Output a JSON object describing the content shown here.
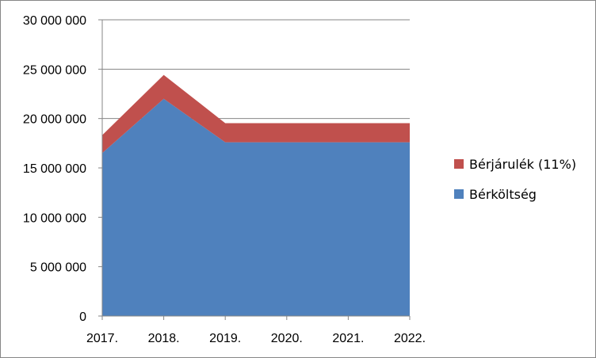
{
  "chart_data": {
    "type": "area",
    "stacked": true,
    "categories": [
      "2017.",
      "2018.",
      "2019.",
      "2020.",
      "2021.",
      "2022."
    ],
    "series": [
      {
        "name": "Bérköltség",
        "color": "#4f81bd",
        "values": [
          16500000,
          22000000,
          17600000,
          17600000,
          17600000,
          17600000
        ]
      },
      {
        "name": "Bérjárulék (11%)",
        "color": "#c0504d",
        "values": [
          1815000,
          2420000,
          1936000,
          1936000,
          1936000,
          1936000
        ]
      }
    ],
    "ylim": [
      0,
      30000000
    ],
    "yticks": [
      {
        "value": 0,
        "label": "0"
      },
      {
        "value": 5000000,
        "label": "5 000 000"
      },
      {
        "value": 10000000,
        "label": "10 000 000"
      },
      {
        "value": 15000000,
        "label": "15 000 000"
      },
      {
        "value": 20000000,
        "label": "20 000 000"
      },
      {
        "value": 25000000,
        "label": "25 000 000"
      },
      {
        "value": 30000000,
        "label": "30 000 000"
      }
    ],
    "grid": "horizontal",
    "legend": {
      "position": "right",
      "order": [
        "Bérjárulék (11%)",
        "Bérköltség"
      ]
    }
  }
}
